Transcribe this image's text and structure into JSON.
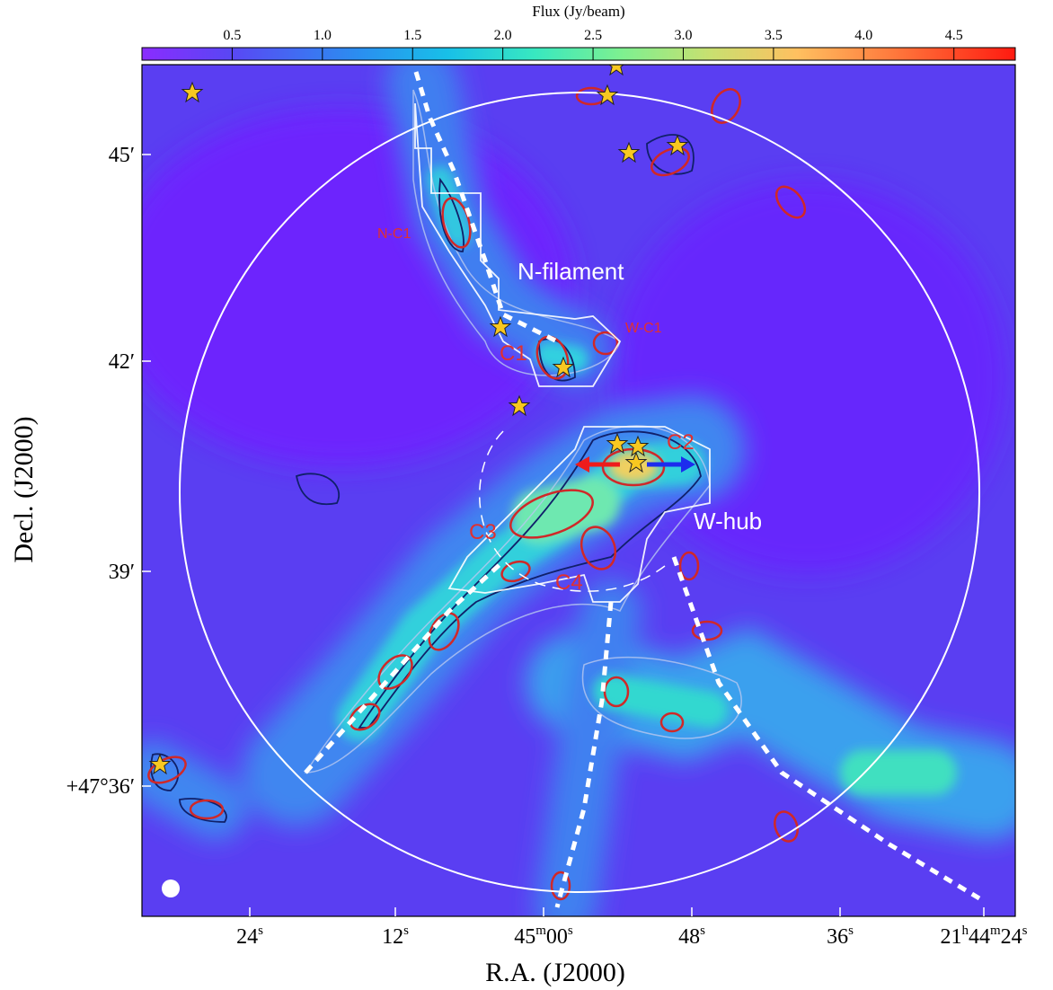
{
  "figure": {
    "colorbar": {
      "label": "Flux (Jy/beam)",
      "lim": [
        0,
        4.84
      ],
      "ticks": [
        0.5,
        {
          "value": 1,
          "label": "1.0"
        },
        1.5,
        {
          "value": 2,
          "label": "2.0"
        },
        2.5,
        {
          "value": 3,
          "label": "3.0"
        },
        3.5,
        {
          "value": 4,
          "label": "4.0"
        },
        4.5
      ]
    },
    "xaxis": {
      "label": "R.A. (J2000)",
      "ticks": [
        [
          "24",
          "s"
        ],
        [
          "12",
          "s"
        ],
        [
          "45",
          "m",
          "00",
          "s"
        ],
        [
          "48",
          "s"
        ],
        [
          "36",
          "s"
        ],
        [
          "21",
          "h",
          "44",
          "m",
          "24",
          "s"
        ]
      ]
    },
    "yaxis": {
      "label": "Decl. (J2000)",
      "ticks": [
        "45′",
        "42′",
        "39′",
        "+47°36′"
      ]
    },
    "annotations": [
      "N-C1",
      "N-filament",
      "W-C1",
      "C1",
      "C2",
      "C3",
      "C4",
      "W-hub"
    ]
  }
}
